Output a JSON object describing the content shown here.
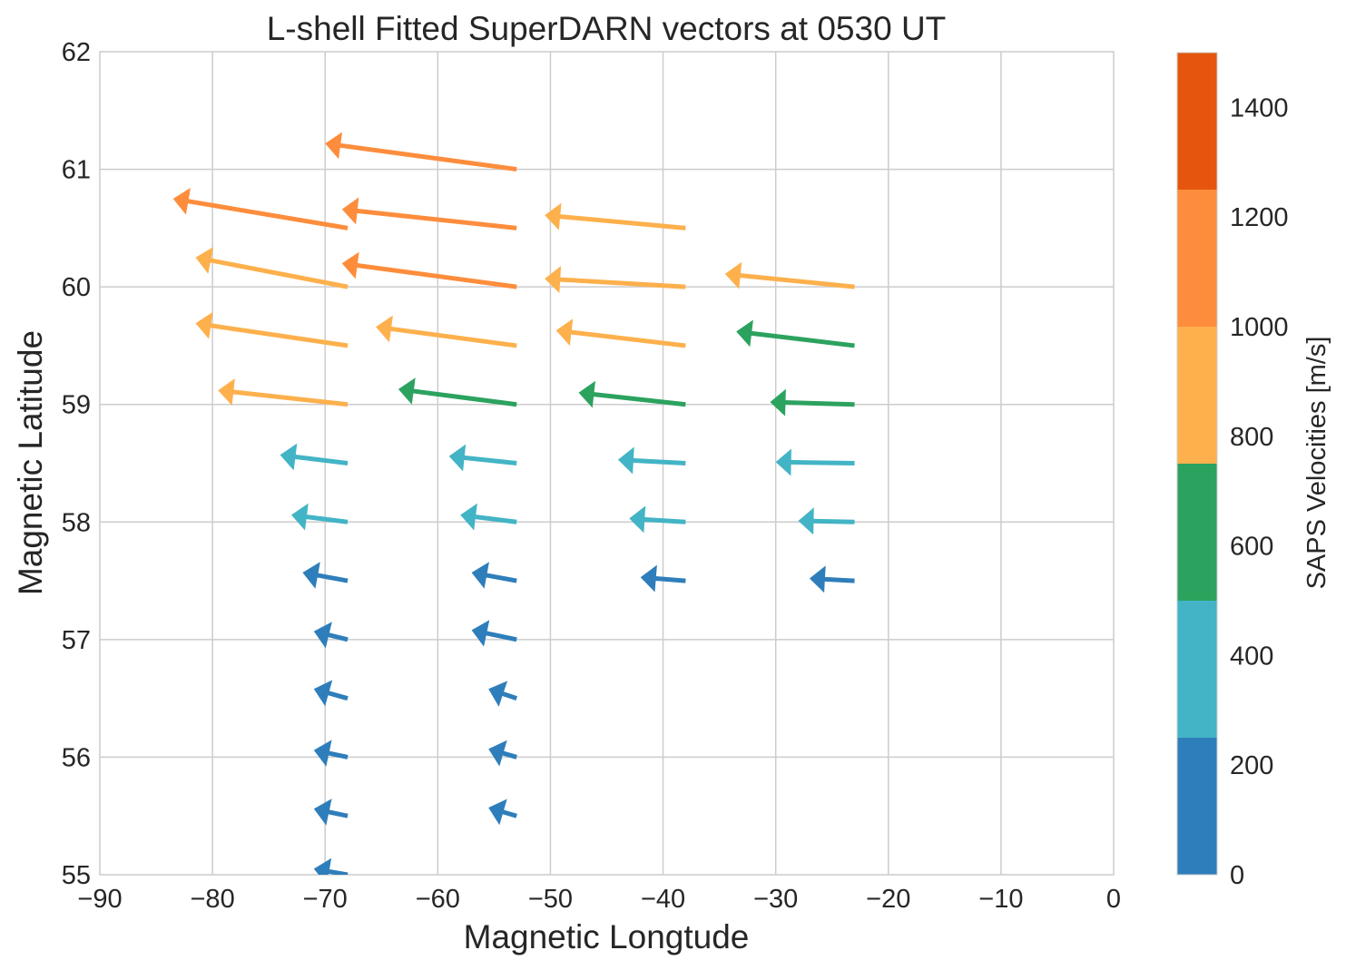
{
  "chart_data": {
    "type": "quiver",
    "title": "L-shell Fitted SuperDARN vectors at 0530 UT",
    "xlabel": "Magnetic Longtude",
    "ylabel": "Magnetic Latitude",
    "xlim": [
      -90,
      0
    ],
    "ylim": [
      55,
      62
    ],
    "xticks": [
      -90,
      -80,
      -70,
      -60,
      -50,
      -40,
      -30,
      -20,
      -10,
      0
    ],
    "xtick_labels": [
      "−90",
      "−80",
      "−70",
      "−60",
      "−50",
      "−40",
      "−30",
      "−20",
      "−10",
      "0"
    ],
    "yticks": [
      55,
      56,
      57,
      58,
      59,
      60,
      61,
      62
    ],
    "ytick_labels": [
      "55",
      "56",
      "57",
      "58",
      "59",
      "60",
      "61",
      "62"
    ],
    "grid": true,
    "colorbar": {
      "label": "SAPS Velocities [m/s]",
      "range": [
        0,
        1500
      ],
      "ticks": [
        0,
        200,
        400,
        600,
        800,
        1000,
        1200,
        1400
      ],
      "tick_labels": [
        "0",
        "200",
        "400",
        "600",
        "800",
        "1000",
        "1200",
        "1400"
      ],
      "bins": [
        {
          "from": 0,
          "to": 250,
          "color": "#2e7ebb"
        },
        {
          "from": 250,
          "to": 500,
          "color": "#42b4c5"
        },
        {
          "from": 500,
          "to": 750,
          "color": "#2ca25f"
        },
        {
          "from": 750,
          "to": 1000,
          "color": "#fdb04c"
        },
        {
          "from": 1000,
          "to": 1250,
          "color": "#fd8d3c"
        },
        {
          "from": 1250,
          "to": 1500,
          "color": "#e6550d"
        }
      ]
    },
    "vectors": [
      {
        "x": -53,
        "y": 61.0,
        "tip_x": -70.0,
        "tip_y": 61.22,
        "speed": 1100
      },
      {
        "x": -68,
        "y": 60.5,
        "tip_x": -83.5,
        "tip_y": 60.75,
        "speed": 1100
      },
      {
        "x": -53,
        "y": 60.5,
        "tip_x": -68.5,
        "tip_y": 60.66,
        "speed": 1100
      },
      {
        "x": -38,
        "y": 60.5,
        "tip_x": -50.5,
        "tip_y": 60.61,
        "speed": 900
      },
      {
        "x": -68,
        "y": 60.0,
        "tip_x": -81.5,
        "tip_y": 60.25,
        "speed": 900
      },
      {
        "x": -53,
        "y": 60.0,
        "tip_x": -68.5,
        "tip_y": 60.2,
        "speed": 1100
      },
      {
        "x": -38,
        "y": 60.0,
        "tip_x": -50.5,
        "tip_y": 60.07,
        "speed": 900
      },
      {
        "x": -23,
        "y": 60.0,
        "tip_x": -34.5,
        "tip_y": 60.11,
        "speed": 900
      },
      {
        "x": -68,
        "y": 59.5,
        "tip_x": -81.5,
        "tip_y": 59.69,
        "speed": 900
      },
      {
        "x": -53,
        "y": 59.5,
        "tip_x": -65.5,
        "tip_y": 59.66,
        "speed": 900
      },
      {
        "x": -38,
        "y": 59.5,
        "tip_x": -49.5,
        "tip_y": 59.63,
        "speed": 900
      },
      {
        "x": -23,
        "y": 59.5,
        "tip_x": -33.5,
        "tip_y": 59.62,
        "speed": 650
      },
      {
        "x": -68,
        "y": 59.0,
        "tip_x": -79.5,
        "tip_y": 59.12,
        "speed": 900
      },
      {
        "x": -53,
        "y": 59.0,
        "tip_x": -63.5,
        "tip_y": 59.13,
        "speed": 650
      },
      {
        "x": -38,
        "y": 59.0,
        "tip_x": -47.5,
        "tip_y": 59.1,
        "speed": 650
      },
      {
        "x": -23,
        "y": 59.0,
        "tip_x": -30.5,
        "tip_y": 59.02,
        "speed": 650
      },
      {
        "x": -68,
        "y": 58.5,
        "tip_x": -74.0,
        "tip_y": 58.57,
        "speed": 400
      },
      {
        "x": -53,
        "y": 58.5,
        "tip_x": -59.0,
        "tip_y": 58.56,
        "speed": 400
      },
      {
        "x": -38,
        "y": 58.5,
        "tip_x": -44.0,
        "tip_y": 58.53,
        "speed": 400
      },
      {
        "x": -23,
        "y": 58.5,
        "tip_x": -30.0,
        "tip_y": 58.51,
        "speed": 400
      },
      {
        "x": -68,
        "y": 58.0,
        "tip_x": -73.0,
        "tip_y": 58.06,
        "speed": 350
      },
      {
        "x": -53,
        "y": 58.0,
        "tip_x": -58.0,
        "tip_y": 58.06,
        "speed": 350
      },
      {
        "x": -38,
        "y": 58.0,
        "tip_x": -43.0,
        "tip_y": 58.03,
        "speed": 350
      },
      {
        "x": -23,
        "y": 58.0,
        "tip_x": -28.0,
        "tip_y": 58.01,
        "speed": 350
      },
      {
        "x": -68,
        "y": 57.5,
        "tip_x": -72.0,
        "tip_y": 57.57,
        "speed": 200
      },
      {
        "x": -53,
        "y": 57.5,
        "tip_x": -57.0,
        "tip_y": 57.57,
        "speed": 200
      },
      {
        "x": -38,
        "y": 57.5,
        "tip_x": -42.0,
        "tip_y": 57.53,
        "speed": 200
      },
      {
        "x": -23,
        "y": 57.5,
        "tip_x": -27.0,
        "tip_y": 57.52,
        "speed": 200
      },
      {
        "x": -68,
        "y": 57.0,
        "tip_x": -71.0,
        "tip_y": 57.07,
        "speed": 150
      },
      {
        "x": -53,
        "y": 57.0,
        "tip_x": -57.0,
        "tip_y": 57.08,
        "speed": 150
      },
      {
        "x": -68,
        "y": 56.5,
        "tip_x": -71.0,
        "tip_y": 56.58,
        "speed": 150
      },
      {
        "x": -53,
        "y": 56.5,
        "tip_x": -55.5,
        "tip_y": 56.58,
        "speed": 150
      },
      {
        "x": -68,
        "y": 56.0,
        "tip_x": -71.0,
        "tip_y": 56.06,
        "speed": 150
      },
      {
        "x": -53,
        "y": 56.0,
        "tip_x": -55.5,
        "tip_y": 56.07,
        "speed": 150
      },
      {
        "x": -68,
        "y": 55.5,
        "tip_x": -71.0,
        "tip_y": 55.56,
        "speed": 150
      },
      {
        "x": -53,
        "y": 55.5,
        "tip_x": -55.5,
        "tip_y": 55.57,
        "speed": 150
      },
      {
        "x": -68,
        "y": 55.0,
        "tip_x": -71.0,
        "tip_y": 55.05,
        "speed": 150
      }
    ]
  }
}
